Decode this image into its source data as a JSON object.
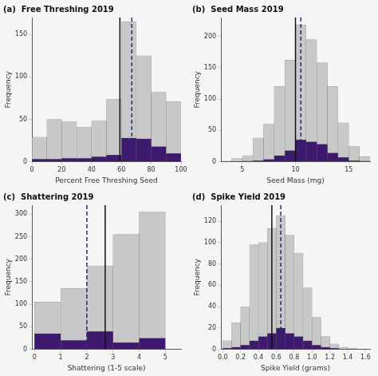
{
  "chart_data": [
    {
      "type": "histogram",
      "title": "(a)  Free Threshing 2019",
      "x_label": "Percent Free Threshing Seed",
      "y_label": "Frequency",
      "bins": [
        0,
        10,
        20,
        30,
        40,
        50,
        60,
        70,
        80,
        90,
        100
      ],
      "series": [
        {
          "color": "#c8c8c8",
          "values": [
            29,
            50,
            47,
            41,
            48,
            74,
            165,
            125,
            82,
            71
          ]
        },
        {
          "color": "#3d1a6e",
          "values": [
            3,
            3,
            4,
            4,
            6,
            8,
            28,
            27,
            18,
            10
          ]
        }
      ],
      "vlines": [
        {
          "x": 67,
          "color": "#2d2080",
          "line_style": "dashed"
        },
        {
          "x": 59,
          "color": "#111111",
          "line_style": "solid"
        }
      ],
      "xlim": [
        0,
        100
      ],
      "xticks": [
        0,
        20,
        40,
        60,
        80,
        100
      ],
      "ylim": [
        0,
        170
      ],
      "yticks": [
        0,
        50,
        100,
        150
      ],
      "grid": false,
      "stacked": false
    },
    {
      "type": "histogram",
      "title": "(b)  Seed Mass 2019",
      "x_label": "Seed Mass (mg)",
      "y_label": "Frequency",
      "bins": [
        3,
        4,
        5,
        6,
        7,
        8,
        9,
        10,
        11,
        12,
        13,
        14,
        15,
        16,
        17
      ],
      "series": [
        {
          "color": "#c8c8c8",
          "values": [
            1,
            5,
            10,
            38,
            60,
            120,
            162,
            218,
            195,
            158,
            120,
            62,
            25,
            8
          ]
        },
        {
          "color": "#3d1a6e",
          "values": [
            0,
            0,
            1,
            2,
            4,
            10,
            18,
            35,
            32,
            28,
            14,
            7,
            2,
            1
          ]
        }
      ],
      "vlines": [
        {
          "x": 10.5,
          "color": "#2d2080",
          "line_style": "dashed"
        },
        {
          "x": 10,
          "color": "#111111",
          "line_style": "solid"
        }
      ],
      "xlim": [
        3,
        17
      ],
      "xticks": [
        5,
        10,
        15
      ],
      "ylim": [
        0,
        230
      ],
      "yticks": [
        0,
        50,
        100,
        150,
        200
      ],
      "grid": false,
      "stacked": false
    },
    {
      "type": "histogram",
      "title": "(c)  Shattering 2019",
      "x_label": "Shattering (1-5 scale)",
      "y_label": "Frequency",
      "bins": [
        0,
        1,
        2,
        3,
        4,
        5
      ],
      "series": [
        {
          "color": "#c8c8c8",
          "values": [
            105,
            135,
            185,
            255,
            305
          ]
        },
        {
          "color": "#3d1a6e",
          "values": [
            35,
            20,
            40,
            15,
            25
          ]
        }
      ],
      "vlines": [
        {
          "x": 2,
          "color": "#2d2080",
          "line_style": "dashed"
        },
        {
          "x": 2.7,
          "color": "#111111",
          "line_style": "solid"
        }
      ],
      "xlim": [
        -0.1,
        5.6
      ],
      "xticks": [
        0,
        1,
        2,
        3,
        4,
        5
      ],
      "ylim": [
        0,
        320
      ],
      "yticks": [
        0,
        50,
        100,
        150,
        200,
        250,
        300
      ],
      "grid": false,
      "stacked": false
    },
    {
      "type": "histogram",
      "title": "(d)  Spike Yield 2019",
      "x_label": "Spike Yield (grams)",
      "y_label": "Frequency",
      "bins": [
        0.0,
        0.1,
        0.2,
        0.3,
        0.4,
        0.5,
        0.6,
        0.7,
        0.8,
        0.9,
        1.0,
        1.1,
        1.2,
        1.3,
        1.4,
        1.5
      ],
      "series": [
        {
          "color": "#c8c8c8",
          "values": [
            8,
            25,
            40,
            98,
            100,
            113,
            125,
            107,
            90,
            58,
            30,
            12,
            5,
            2,
            1
          ]
        },
        {
          "color": "#3d1a6e",
          "values": [
            1,
            2,
            4,
            8,
            12,
            15,
            20,
            15,
            12,
            8,
            4,
            2,
            1,
            0,
            0
          ]
        }
      ],
      "vlines": [
        {
          "x": 0.65,
          "color": "#2d2080",
          "line_style": "dashed"
        },
        {
          "x": 0.55,
          "color": "#111111",
          "line_style": "solid"
        }
      ],
      "xlim": [
        -0.02,
        1.65
      ],
      "xticks": [
        {
          "value": 0,
          "label": "0.0"
        },
        0.2,
        0.4,
        0.6,
        0.8,
        {
          "value": 1,
          "label": "1.0"
        },
        1.2,
        1.4,
        1.6
      ],
      "ylim": [
        0,
        135
      ],
      "yticks": [
        0,
        20,
        40,
        60,
        80,
        100,
        120
      ],
      "grid": false,
      "stacked": false
    }
  ]
}
